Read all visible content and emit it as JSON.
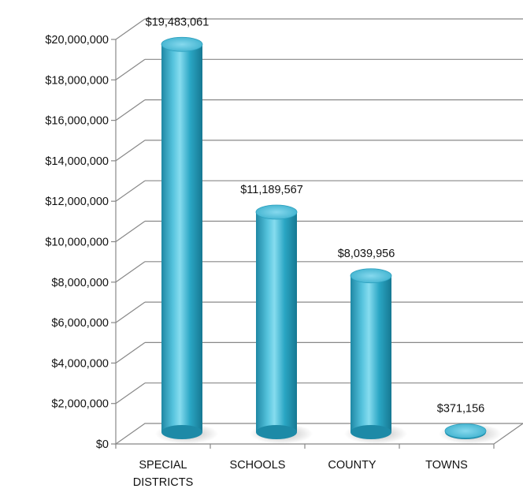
{
  "chart_data": {
    "type": "bar",
    "categories": [
      "SPECIAL DISTRICTS",
      "SCHOOLS",
      "COUNTY",
      "TOWNS"
    ],
    "category_lines": [
      [
        "SPECIAL",
        "DISTRICTS"
      ],
      [
        "SCHOOLS"
      ],
      [
        "COUNTY"
      ],
      [
        "TOWNS"
      ]
    ],
    "values": [
      19483061,
      11189567,
      8039956,
      371156
    ],
    "value_labels": [
      "$19,483,061",
      "$11,189,567",
      "$8,039,956",
      "$371,156"
    ],
    "yticks": [
      0,
      2000000,
      4000000,
      6000000,
      8000000,
      10000000,
      12000000,
      14000000,
      16000000,
      18000000,
      20000000
    ],
    "ytick_labels": [
      "$0",
      "$2,000,000",
      "$4,000,000",
      "$6,000,000",
      "$8,000,000",
      "$10,000,000",
      "$12,000,000",
      "$14,000,000",
      "$16,000,000",
      "$18,000,000",
      "$20,000,000"
    ],
    "ylim": [
      0,
      20000000
    ],
    "title": "",
    "xlabel": "",
    "ylabel": "",
    "grid": true,
    "legend": "none",
    "style": "3d-cylinder",
    "bar_color": "#2aa6c4",
    "gridline_color": "#888888"
  }
}
